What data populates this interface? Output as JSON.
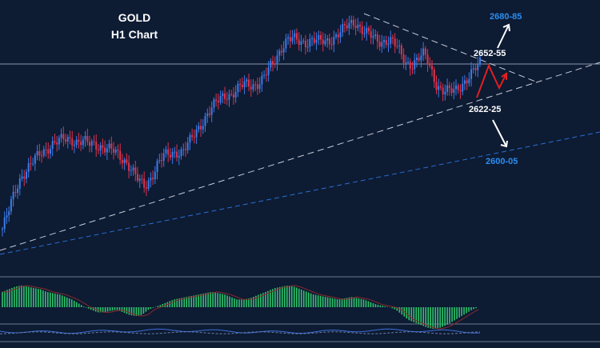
{
  "chart_data": {
    "type": "candlestick",
    "title": "GOLD",
    "subtitle": "H1 Chart",
    "colors": {
      "background": "#0d1b33",
      "up_candle": "#3d7be8",
      "down_candle": "#e0334a",
      "trendline": "#c8ccd6",
      "support_line": "#2b6fd0",
      "histogram_up": "#2fc46b",
      "histogram_line": "#8a2a2a",
      "arrow_red": "#e02020",
      "arrow_white": "#ffffff",
      "label_blue": "#2b8ef0"
    },
    "price_path": [
      2585,
      2592,
      2600,
      2606,
      2609,
      2612,
      2615,
      2617,
      2619,
      2620,
      2621,
      2621,
      2620,
      2620,
      2619,
      2619,
      2618,
      2617,
      2616,
      2614,
      2612,
      2608,
      2604,
      2602,
      2606,
      2611,
      2614,
      2615,
      2616,
      2616,
      2619,
      2623,
      2627,
      2631,
      2634,
      2637,
      2639,
      2639,
      2641,
      2643,
      2643,
      2643,
      2645,
      2649,
      2653,
      2658,
      2661,
      2661,
      2660,
      2660,
      2661,
      2660,
      2660,
      2661,
      2663,
      2665,
      2667,
      2668,
      2665,
      2663,
      2661,
      2660,
      2661,
      2660,
      2656,
      2652,
      2651,
      2653,
      2655,
      2650,
      2643,
      2640,
      2640,
      2641,
      2643,
      2645,
      2648,
      2652
    ],
    "annotations": [
      {
        "text": "2680-85",
        "color": "blue"
      },
      {
        "text": "2652-55",
        "color": "white"
      },
      {
        "text": "2622-25",
        "color": "white"
      },
      {
        "text": "2600-05",
        "color": "blue"
      }
    ],
    "lines": [
      "descending-resistance",
      "ascending-support",
      "lower-support-dashed",
      "horizontal-level"
    ],
    "indicator": {
      "type": "histogram",
      "values": [
        0.6,
        0.7,
        0.8,
        0.85,
        0.8,
        0.75,
        0.7,
        0.6,
        0.55,
        0.5,
        0.4,
        0.3,
        0.15,
        0.0,
        -0.1,
        -0.2,
        -0.2,
        -0.15,
        -0.1,
        -0.2,
        -0.3,
        -0.35,
        -0.3,
        -0.1,
        0.0,
        0.1,
        0.2,
        0.3,
        0.35,
        0.4,
        0.45,
        0.5,
        0.55,
        0.6,
        0.55,
        0.5,
        0.4,
        0.3,
        0.3,
        0.35,
        0.45,
        0.55,
        0.65,
        0.75,
        0.8,
        0.85,
        0.8,
        0.7,
        0.6,
        0.5,
        0.45,
        0.4,
        0.35,
        0.3,
        0.35,
        0.4,
        0.35,
        0.3,
        0.2,
        0.1,
        0.05,
        0.0,
        -0.1,
        -0.3,
        -0.5,
        -0.6,
        -0.7,
        -0.8,
        -0.85,
        -0.8,
        -0.7,
        -0.55,
        -0.4,
        -0.25,
        -0.1,
        0.0
      ]
    }
  }
}
